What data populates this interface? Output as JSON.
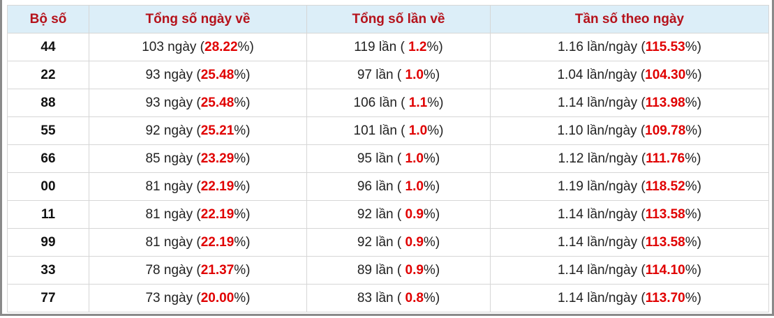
{
  "header": [
    "Bộ số",
    "Tổng số ngày về",
    "Tổng số lần về",
    "Tần số theo ngày"
  ],
  "rows": [
    {
      "number": "44",
      "days": {
        "before": "103 ngày (",
        "highlight": "28.22",
        "after": "%)"
      },
      "times": {
        "before": "119 lần ( ",
        "highlight": "1.2",
        "after": "%)"
      },
      "freq": {
        "before": "1.16 lần/ngày (",
        "highlight": "115.53",
        "after": "%)"
      }
    },
    {
      "number": "22",
      "days": {
        "before": "93 ngày (",
        "highlight": "25.48",
        "after": "%)"
      },
      "times": {
        "before": "97 lần ( ",
        "highlight": "1.0",
        "after": "%)"
      },
      "freq": {
        "before": "1.04 lần/ngày (",
        "highlight": "104.30",
        "after": "%)"
      }
    },
    {
      "number": "88",
      "days": {
        "before": "93 ngày (",
        "highlight": "25.48",
        "after": "%)"
      },
      "times": {
        "before": "106 lần ( ",
        "highlight": "1.1",
        "after": "%)"
      },
      "freq": {
        "before": "1.14 lần/ngày (",
        "highlight": "113.98",
        "after": "%)"
      }
    },
    {
      "number": "55",
      "days": {
        "before": "92 ngày (",
        "highlight": "25.21",
        "after": "%)"
      },
      "times": {
        "before": "101 lần ( ",
        "highlight": "1.0",
        "after": "%)"
      },
      "freq": {
        "before": "1.10 lần/ngày (",
        "highlight": "109.78",
        "after": "%)"
      }
    },
    {
      "number": "66",
      "days": {
        "before": "85 ngày (",
        "highlight": "23.29",
        "after": "%)"
      },
      "times": {
        "before": "95 lần ( ",
        "highlight": "1.0",
        "after": "%)"
      },
      "freq": {
        "before": "1.12 lần/ngày (",
        "highlight": "111.76",
        "after": "%)"
      }
    },
    {
      "number": "00",
      "days": {
        "before": "81 ngày (",
        "highlight": "22.19",
        "after": "%)"
      },
      "times": {
        "before": "96 lần ( ",
        "highlight": "1.0",
        "after": "%)"
      },
      "freq": {
        "before": "1.19 lần/ngày (",
        "highlight": "118.52",
        "after": "%)"
      }
    },
    {
      "number": "11",
      "days": {
        "before": "81 ngày (",
        "highlight": "22.19",
        "after": "%)"
      },
      "times": {
        "before": "92 lần ( ",
        "highlight": "0.9",
        "after": "%)"
      },
      "freq": {
        "before": "1.14 lần/ngày (",
        "highlight": "113.58",
        "after": "%)"
      }
    },
    {
      "number": "99",
      "days": {
        "before": "81 ngày (",
        "highlight": "22.19",
        "after": "%)"
      },
      "times": {
        "before": "92 lần ( ",
        "highlight": "0.9",
        "after": "%)"
      },
      "freq": {
        "before": "1.14 lần/ngày (",
        "highlight": "113.58",
        "after": "%)"
      }
    },
    {
      "number": "33",
      "days": {
        "before": "78 ngày (",
        "highlight": "21.37",
        "after": "%)"
      },
      "times": {
        "before": "89 lần ( ",
        "highlight": "0.9",
        "after": "%)"
      },
      "freq": {
        "before": "1.14 lần/ngày (",
        "highlight": "114.10",
        "after": "%)"
      }
    },
    {
      "number": "77",
      "days": {
        "before": "73 ngày (",
        "highlight": "20.00",
        "after": "%)"
      },
      "times": {
        "before": "83 lần ( ",
        "highlight": "0.8",
        "after": "%)"
      },
      "freq": {
        "before": "1.14 lần/ngày (",
        "highlight": "113.70",
        "after": "%)"
      }
    }
  ]
}
